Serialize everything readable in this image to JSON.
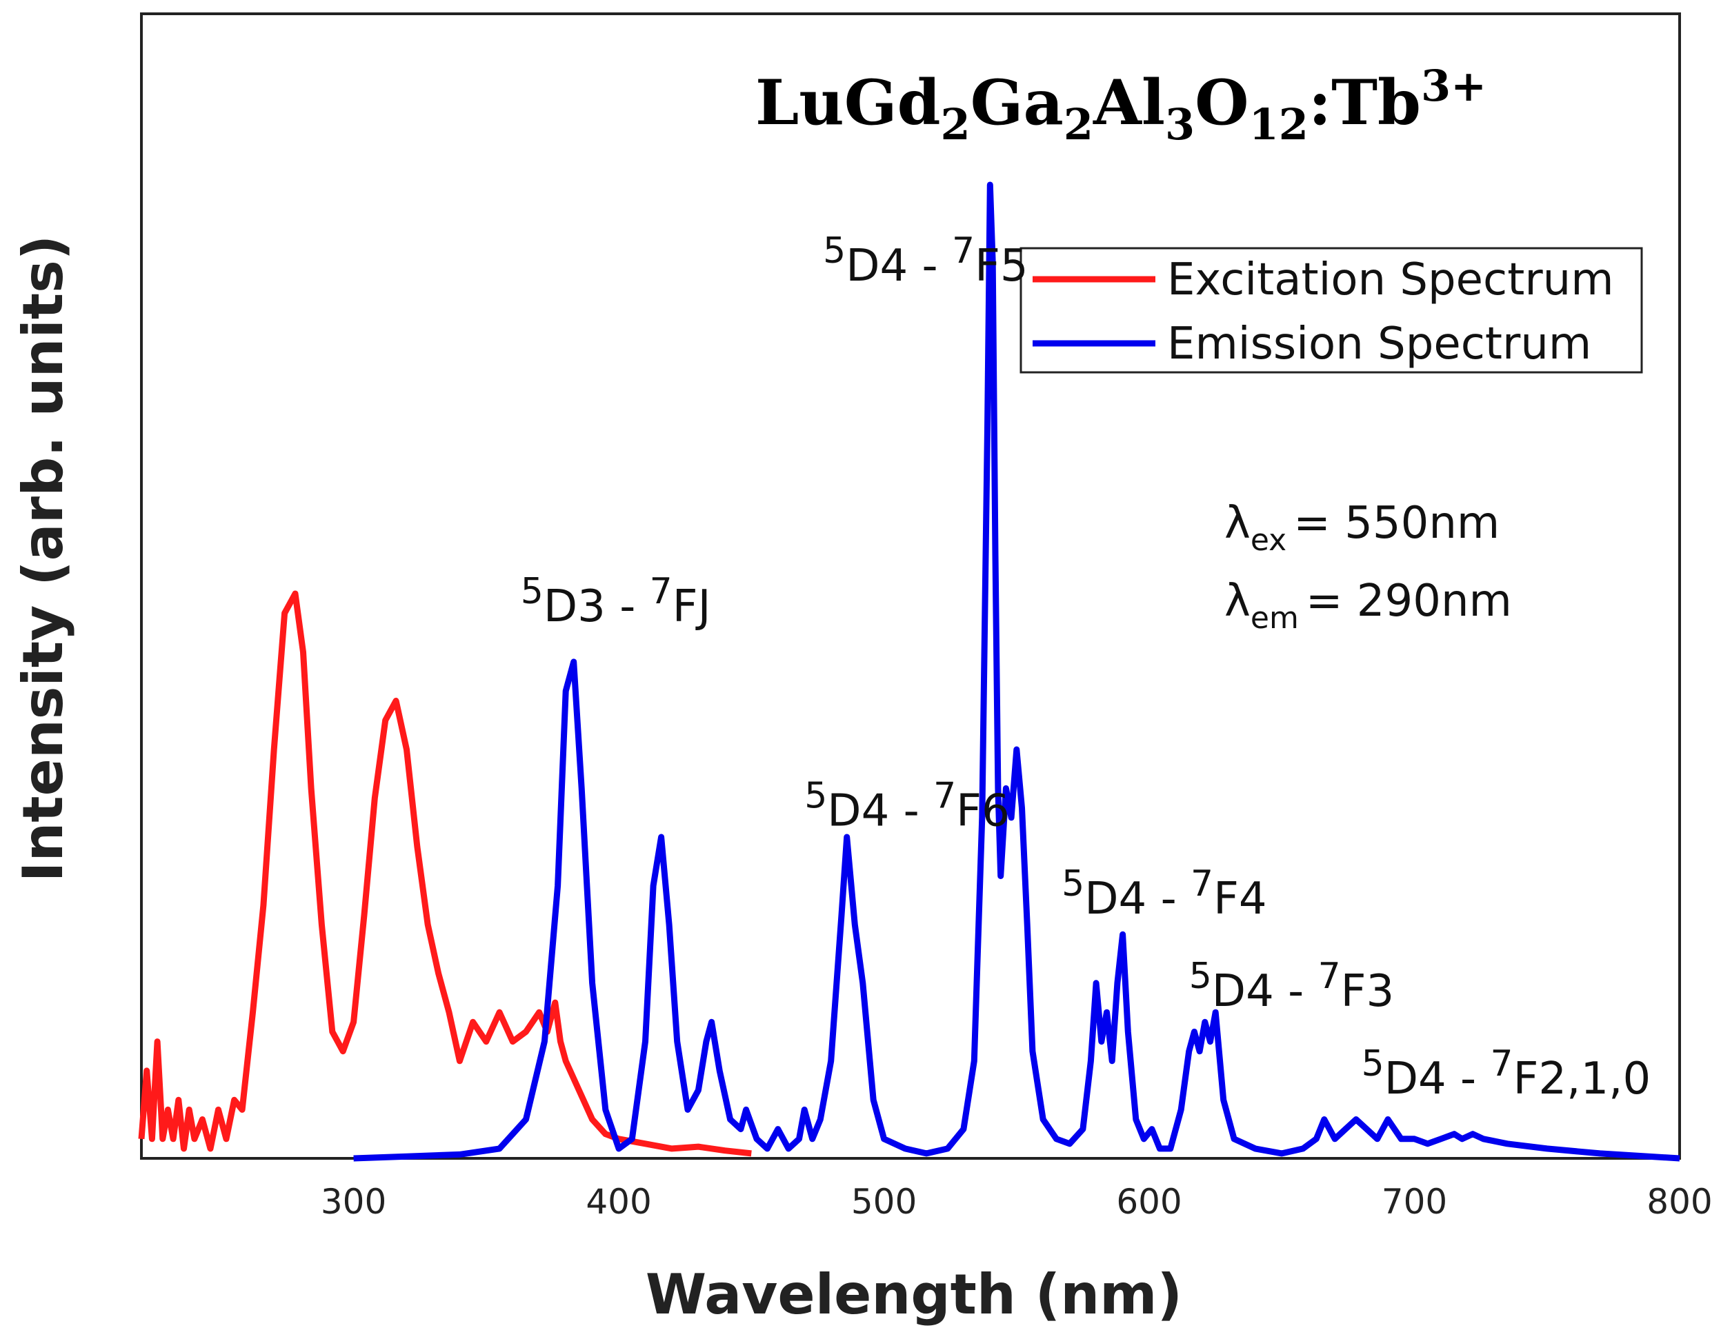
{
  "chart_data": {
    "type": "line",
    "title": {
      "base": "LuGd",
      "s1": "2",
      "b2": "Ga",
      "s2": "2",
      "b3": "Al",
      "s3": "3",
      "b4": "O",
      "s4": "12",
      "b5": ":Tb",
      "sup": "3+"
    },
    "xlabel": "Wavelength (nm)",
    "ylabel": "Intensity (arb. units)",
    "xlim": [
      220,
      800
    ],
    "ylim": [
      0,
      1.0
    ],
    "x_ticks": [
      300,
      400,
      500,
      600,
      700,
      800
    ],
    "grid": false,
    "legend_position": "top-right",
    "series": [
      {
        "name": "Excitation Spectrum",
        "color": "#ff1a1a",
        "x": [
          220,
          222,
          224,
          226,
          228,
          230,
          232,
          234,
          236,
          238,
          240,
          243,
          246,
          249,
          252,
          255,
          258,
          262,
          266,
          270,
          274,
          278,
          281,
          284,
          288,
          292,
          296,
          300,
          304,
          308,
          312,
          316,
          320,
          324,
          328,
          332,
          336,
          340,
          345,
          350,
          355,
          360,
          365,
          370,
          373,
          376,
          378,
          380,
          385,
          390,
          395,
          400,
          410,
          420,
          430,
          440,
          450
        ],
        "y": [
          0.02,
          0.09,
          0.02,
          0.12,
          0.02,
          0.05,
          0.02,
          0.06,
          0.01,
          0.05,
          0.02,
          0.04,
          0.01,
          0.05,
          0.02,
          0.06,
          0.05,
          0.15,
          0.26,
          0.42,
          0.56,
          0.58,
          0.52,
          0.38,
          0.24,
          0.13,
          0.11,
          0.14,
          0.25,
          0.37,
          0.45,
          0.47,
          0.42,
          0.32,
          0.24,
          0.19,
          0.15,
          0.1,
          0.14,
          0.12,
          0.15,
          0.12,
          0.13,
          0.15,
          0.13,
          0.16,
          0.12,
          0.1,
          0.07,
          0.04,
          0.025,
          0.02,
          0.015,
          0.01,
          0.012,
          0.008,
          0.005
        ]
      },
      {
        "name": "Emission Spectrum",
        "color": "#0000ee",
        "x": [
          300,
          320,
          340,
          355,
          365,
          372,
          377,
          380,
          383,
          386,
          390,
          395,
          400,
          405,
          410,
          413,
          416,
          419,
          422,
          426,
          430,
          433,
          435,
          438,
          442,
          446,
          448,
          452,
          456,
          460,
          464,
          468,
          470,
          473,
          476,
          480,
          484,
          486,
          489,
          492,
          496,
          500,
          508,
          516,
          524,
          530,
          534,
          537,
          539,
          540,
          541,
          542,
          543,
          544,
          546,
          548,
          550,
          552,
          554,
          556,
          560,
          565,
          570,
          575,
          578,
          580,
          582,
          584,
          586,
          588,
          590,
          592,
          595,
          598,
          601,
          604,
          608,
          612,
          615,
          617,
          619,
          621,
          623,
          625,
          628,
          632,
          640,
          650,
          658,
          663,
          666,
          670,
          674,
          678,
          682,
          686,
          690,
          695,
          700,
          705,
          710,
          715,
          718,
          722,
          726,
          735,
          750,
          770,
          800
        ],
        "y": [
          0.0,
          0.002,
          0.004,
          0.01,
          0.04,
          0.12,
          0.28,
          0.48,
          0.51,
          0.38,
          0.18,
          0.05,
          0.01,
          0.02,
          0.12,
          0.28,
          0.33,
          0.24,
          0.12,
          0.05,
          0.07,
          0.12,
          0.14,
          0.09,
          0.04,
          0.03,
          0.05,
          0.02,
          0.01,
          0.03,
          0.01,
          0.02,
          0.05,
          0.02,
          0.04,
          0.1,
          0.25,
          0.33,
          0.24,
          0.18,
          0.06,
          0.02,
          0.01,
          0.005,
          0.01,
          0.03,
          0.1,
          0.35,
          0.75,
          1.0,
          0.92,
          0.62,
          0.38,
          0.29,
          0.38,
          0.35,
          0.42,
          0.36,
          0.24,
          0.11,
          0.04,
          0.02,
          0.015,
          0.03,
          0.1,
          0.18,
          0.12,
          0.15,
          0.1,
          0.18,
          0.23,
          0.13,
          0.04,
          0.02,
          0.03,
          0.01,
          0.01,
          0.05,
          0.11,
          0.13,
          0.11,
          0.14,
          0.12,
          0.15,
          0.06,
          0.02,
          0.01,
          0.005,
          0.01,
          0.02,
          0.04,
          0.02,
          0.03,
          0.04,
          0.03,
          0.02,
          0.04,
          0.02,
          0.02,
          0.015,
          0.02,
          0.025,
          0.02,
          0.025,
          0.02,
          0.015,
          0.01,
          0.005,
          0.0
        ]
      }
    ],
    "annotations": [
      {
        "x": 363,
        "y": 0.57,
        "S": "5",
        "A": "D",
        "a": "3",
        "dash": "-",
        "T": "7",
        "B": "F",
        "b": "J"
      },
      {
        "x": 470,
        "y": 0.36,
        "S": "5",
        "A": "D",
        "a": "4",
        "dash": "-",
        "T": "7",
        "B": "F",
        "b": "6"
      },
      {
        "x": 477,
        "y": 0.92,
        "S": "5",
        "A": "D",
        "a": "4",
        "dash": "-",
        "T": "7",
        "B": "F",
        "b": "5"
      },
      {
        "x": 567,
        "y": 0.27,
        "S": "5",
        "A": "D",
        "a": "4",
        "dash": "-",
        "T": "7",
        "B": "F",
        "b": "4"
      },
      {
        "x": 615,
        "y": 0.175,
        "S": "5",
        "A": "D",
        "a": "4",
        "dash": "-",
        "T": "7",
        "B": "F",
        "b": "3"
      },
      {
        "x": 680,
        "y": 0.085,
        "S": "5",
        "A": "D",
        "a": "4",
        "dash": "-",
        "T": "7",
        "B": "F",
        "b": "2,1,0"
      }
    ],
    "conditions": [
      {
        "symbol": "λ",
        "sub": "ex",
        "text": "= 550nm"
      },
      {
        "symbol": "λ",
        "sub": "em",
        "text": "= 290nm"
      }
    ]
  }
}
